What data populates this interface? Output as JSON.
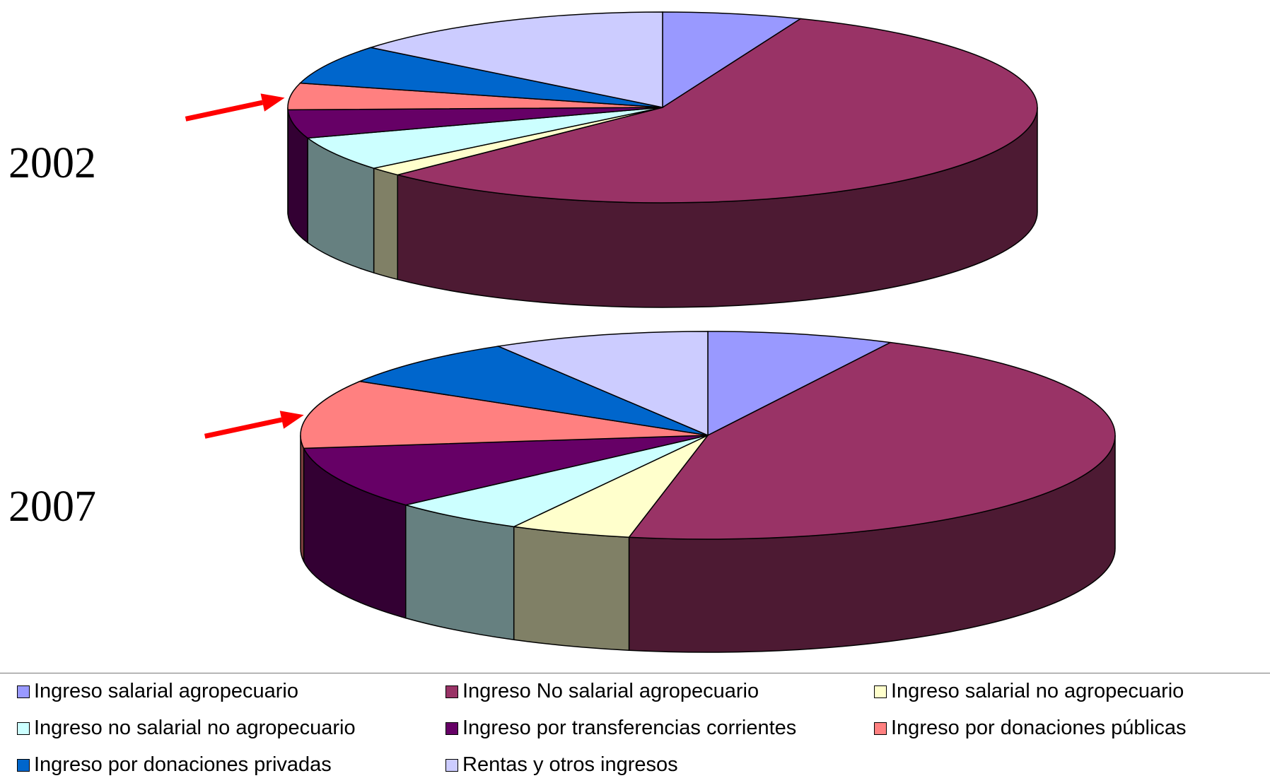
{
  "chart_data": [
    {
      "type": "pie",
      "title": "2002",
      "slices": [
        {
          "label": "Ingreso salarial agropecuario",
          "value": 6.0
        },
        {
          "label": "Ingreso No salarial agropecuario",
          "value": 56.5
        },
        {
          "label": "Ingreso salarial no agropecuario",
          "value": 1.5
        },
        {
          "label": "Ingreso no salarial no agropecuario",
          "value": 5.8
        },
        {
          "label": "Ingreso por transferencias corrientes",
          "value": 4.8
        },
        {
          "label": "Ingreso por donaciones públicas",
          "value": 4.5
        },
        {
          "label": "Ingreso por donaciones privadas",
          "value": 6.7
        },
        {
          "label": "Rentas y otros ingresos",
          "value": 14.2
        }
      ]
    },
    {
      "type": "pie",
      "title": "2007",
      "slices": [
        {
          "label": "Ingreso salarial agropecuario",
          "value": 7.4
        },
        {
          "label": "Ingreso No salarial agropecuario",
          "value": 45.7
        },
        {
          "label": "Ingreso salarial no agropecuario",
          "value": 4.8
        },
        {
          "label": "Ingreso no salarial no agropecuario",
          "value": 5.4
        },
        {
          "label": "Ingreso por transferencias corrientes",
          "value": 9.7
        },
        {
          "label": "Ingreso por donaciones públicas",
          "value": 10.7
        },
        {
          "label": "Ingreso por donaciones privadas",
          "value": 7.7
        },
        {
          "label": "Rentas y otros ingresos",
          "value": 8.6
        }
      ]
    }
  ],
  "legend": {
    "placement": "bottom",
    "items": [
      {
        "label": "Ingreso salarial agropecuario",
        "color": "#9999ff"
      },
      {
        "label": "Ingreso No salarial agropecuario",
        "color": "#993366"
      },
      {
        "label": "Ingreso salarial no agropecuario",
        "color": "#ffffcc"
      },
      {
        "label": "Ingreso no salarial no agropecuario",
        "color": "#ccffff"
      },
      {
        "label": "Ingreso por transferencias corrientes",
        "color": "#660066"
      },
      {
        "label": "Ingreso por donaciones públicas",
        "color": "#ff8080"
      },
      {
        "label": "Ingreso por donaciones privadas",
        "color": "#0066cc"
      },
      {
        "label": "Rentas y otros ingresos",
        "color": "#ccccff"
      }
    ]
  },
  "years": {
    "first": "2002",
    "second": "2007"
  },
  "highlight_arrow_color": "#ff0000",
  "highlighted_slice": "Ingreso por donaciones públicas"
}
